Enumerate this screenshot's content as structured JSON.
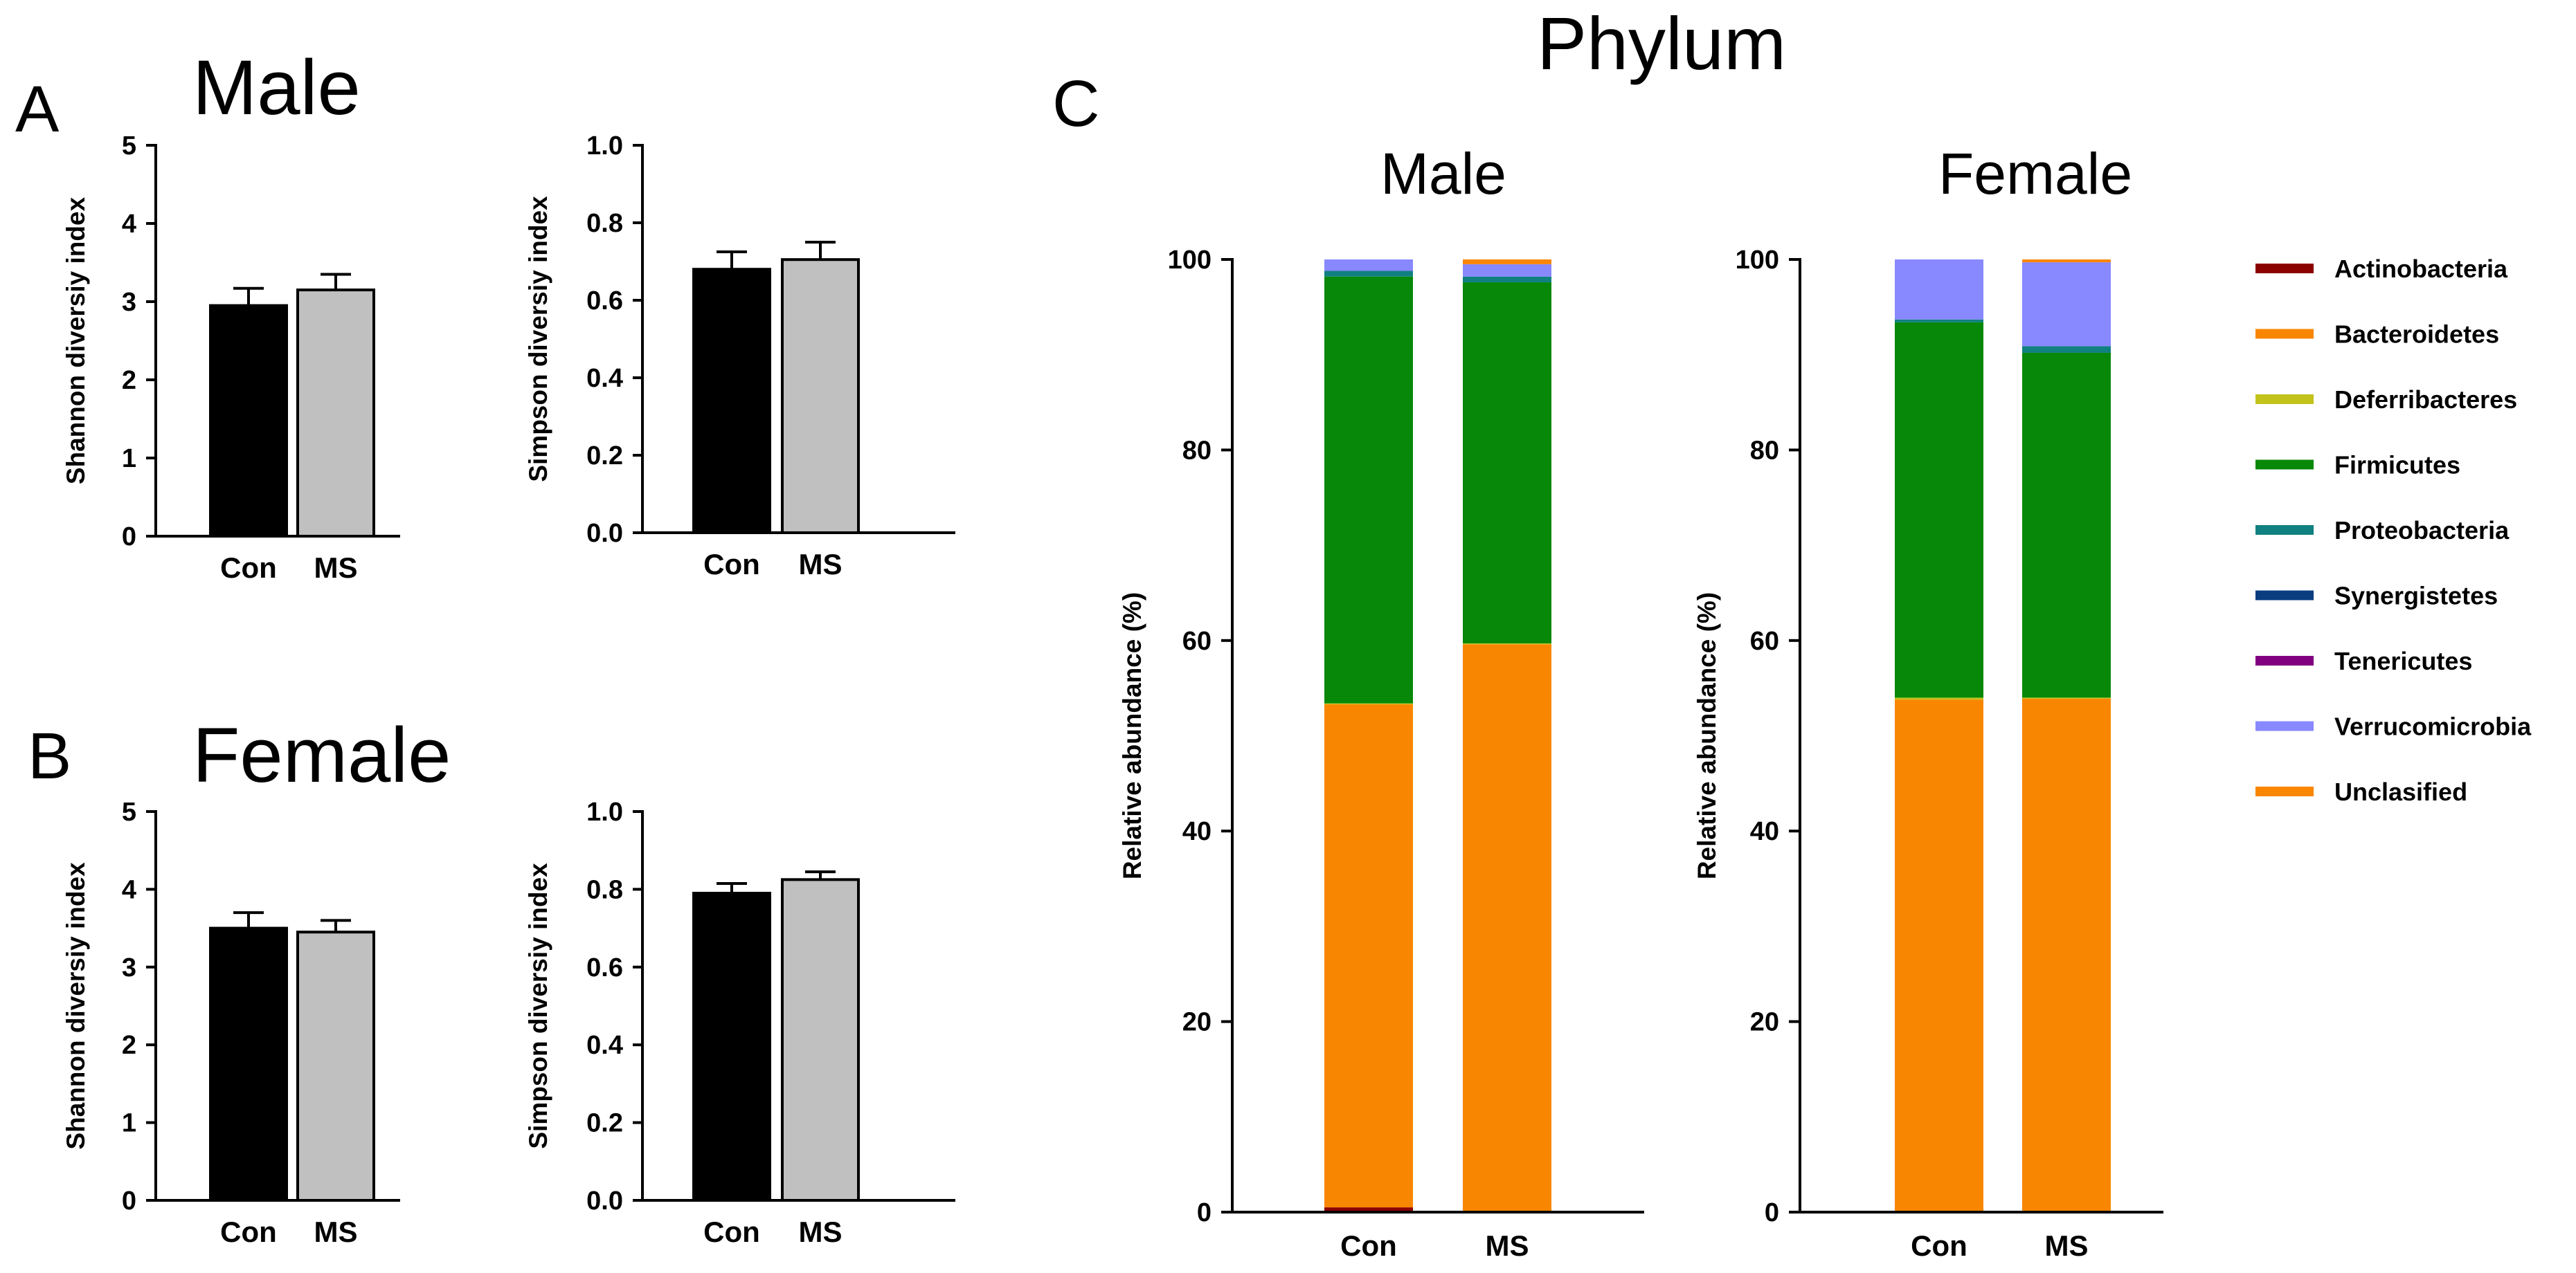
{
  "figure": {
    "panel_letters": {
      "A": "A",
      "B": "B",
      "C": "C"
    },
    "panel_titles": {
      "A": "Male",
      "B": "Female",
      "C": "Phylum"
    }
  },
  "colors": {
    "Con": "#000000",
    "MS": "#c0c0c0",
    "Actinobacteria": "#8b0000",
    "Bacteroidetes": "#f98600",
    "Deferribacteres": "#c2c21a",
    "Firmicutes": "#088808",
    "Proteobacteria": "#108080",
    "Synergistetes": "#0a3c80",
    "Tenericutes": "#800080",
    "Verrucomicrobia": "#8888ff",
    "Unclasified": "#f98600"
  },
  "chart_data": [
    {
      "id": "A-shannon",
      "type": "bar",
      "title": "",
      "xlabel": "",
      "ylabel": "Shannon diversiy index",
      "categories": [
        "Con",
        "MS"
      ],
      "values": [
        2.95,
        3.15
      ],
      "errors": [
        0.22,
        0.2
      ],
      "ylim": [
        0,
        5
      ],
      "yticks": [
        "0",
        "1",
        "2",
        "3",
        "4",
        "5"
      ]
    },
    {
      "id": "A-simpson",
      "type": "bar",
      "title": "",
      "xlabel": "",
      "ylabel": "Simpson diversiy index",
      "categories": [
        "Con",
        "MS"
      ],
      "values": [
        0.68,
        0.705
      ],
      "errors": [
        0.045,
        0.045
      ],
      "ylim": [
        0,
        1
      ],
      "yticks": [
        "0.0",
        "0.2",
        "0.4",
        "0.6",
        "0.8",
        "1.0"
      ]
    },
    {
      "id": "B-shannon",
      "type": "bar",
      "title": "",
      "xlabel": "",
      "ylabel": "Shannon diversiy index",
      "categories": [
        "Con",
        "MS"
      ],
      "values": [
        3.5,
        3.45
      ],
      "errors": [
        0.2,
        0.15
      ],
      "ylim": [
        0,
        5
      ],
      "yticks": [
        "0",
        "1",
        "2",
        "3",
        "4",
        "5"
      ]
    },
    {
      "id": "B-simpson",
      "type": "bar",
      "title": "",
      "xlabel": "",
      "ylabel": "Simpson diversiy index",
      "categories": [
        "Con",
        "MS"
      ],
      "values": [
        0.79,
        0.825
      ],
      "errors": [
        0.025,
        0.02
      ],
      "ylim": [
        0,
        1
      ],
      "yticks": [
        "0.0",
        "0.2",
        "0.4",
        "0.6",
        "0.8",
        "1.0"
      ]
    },
    {
      "id": "C-male",
      "type": "bar",
      "stacked": true,
      "title": "Male",
      "xlabel": "",
      "ylabel": "Relative abundance (%)",
      "categories": [
        "Con",
        "MS"
      ],
      "ylim": [
        0,
        100
      ],
      "yticks": [
        "0",
        "20",
        "40",
        "60",
        "80",
        "100"
      ],
      "series": [
        {
          "name": "Actinobacteria",
          "values": [
            0.5,
            0.0
          ]
        },
        {
          "name": "Bacteroidetes",
          "values": [
            52.8,
            59.6
          ]
        },
        {
          "name": "Deferribacteres",
          "values": [
            0.1,
            0.1
          ]
        },
        {
          "name": "Firmicutes",
          "values": [
            44.8,
            37.9
          ]
        },
        {
          "name": "Proteobacteria",
          "values": [
            0.6,
            0.6
          ]
        },
        {
          "name": "Synergistetes",
          "values": [
            0.0,
            0.0
          ]
        },
        {
          "name": "Tenericutes",
          "values": [
            0.0,
            0.0
          ]
        },
        {
          "name": "Verrucomicrobia",
          "values": [
            1.2,
            1.3
          ]
        },
        {
          "name": "Unclasified",
          "values": [
            0.0,
            0.5
          ]
        }
      ]
    },
    {
      "id": "C-female",
      "type": "bar",
      "stacked": true,
      "title": "Female",
      "xlabel": "",
      "ylabel": "Relative abundance (%)",
      "categories": [
        "Con",
        "MS"
      ],
      "ylim": [
        0,
        100
      ],
      "yticks": [
        "0",
        "20",
        "40",
        "60",
        "80",
        "100"
      ],
      "series": [
        {
          "name": "Actinobacteria",
          "values": [
            0.0,
            0.0
          ]
        },
        {
          "name": "Bacteroidetes",
          "values": [
            53.8,
            53.9
          ]
        },
        {
          "name": "Deferribacteres",
          "values": [
            0.2,
            0.1
          ]
        },
        {
          "name": "Firmicutes",
          "values": [
            39.4,
            36.2
          ]
        },
        {
          "name": "Proteobacteria",
          "values": [
            0.3,
            0.7
          ]
        },
        {
          "name": "Synergistetes",
          "values": [
            0.0,
            0.0
          ]
        },
        {
          "name": "Tenericutes",
          "values": [
            0.0,
            0.0
          ]
        },
        {
          "name": "Verrucomicrobia",
          "values": [
            6.3,
            8.8
          ]
        },
        {
          "name": "Unclasified",
          "values": [
            0.0,
            0.3
          ]
        }
      ]
    }
  ],
  "legend": {
    "items": [
      "Actinobacteria",
      "Bacteroidetes",
      "Deferribacteres",
      "Firmicutes",
      "Proteobacteria",
      "Synergistetes",
      "Tenericutes",
      "Verrucomicrobia",
      "Unclasified"
    ]
  }
}
